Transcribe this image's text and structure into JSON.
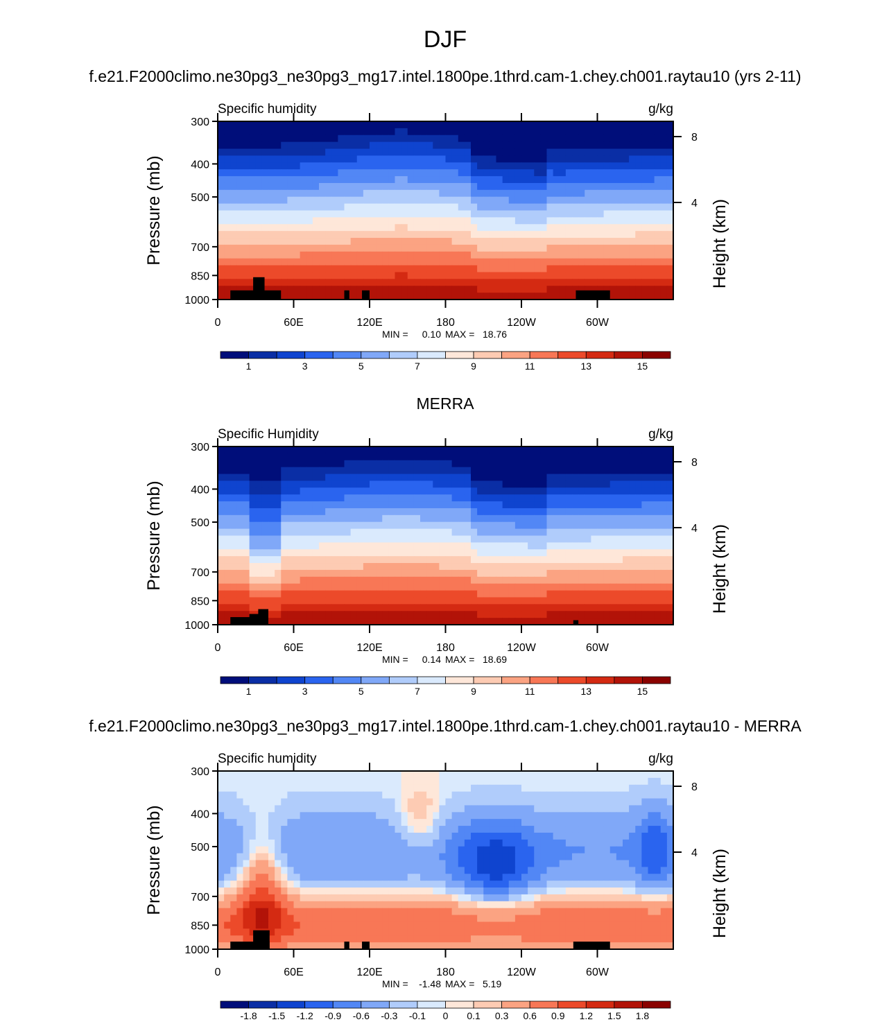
{
  "figure": {
    "title": "DJF"
  },
  "chart_data": [
    {
      "type": "heatmap",
      "panel_title": "f.e21.F2000climo.ne30pg3_ne30pg3_mg17.intel.1800pe.1thrd.cam-1.chey.ch001.raytau10 (yrs 2-11)",
      "title": "Specific humidity",
      "units": "g/kg",
      "xlabel": "",
      "ylabel": "Pressure (mb)",
      "ylabel_right": "Height (km)",
      "x_ticks": [
        "0",
        "60E",
        "120E",
        "180",
        "120W",
        "60W"
      ],
      "y_ticks": [
        "300",
        "400",
        "500",
        "700",
        "850",
        "1000"
      ],
      "y_ticks_right": [
        "8",
        "4"
      ],
      "min_label": "MIN =",
      "min_value": "0.10",
      "max_label": "MAX =",
      "max_value": "18.76",
      "colorbar_labels": [
        "1",
        "3",
        "5",
        "7",
        "9",
        "11",
        "13",
        "15"
      ],
      "colors": [
        "#000e7a",
        "#0a2ea5",
        "#0f44cf",
        "#2a64ef",
        "#5287f5",
        "#80a8f8",
        "#b0ccfb",
        "#daeafd",
        "#fee7d9",
        "#fdcbb3",
        "#fba382",
        "#f87756",
        "#ec4a2a",
        "#d42a12",
        "#b21308",
        "#8a0200"
      ],
      "colorbar_kind": "linear"
    },
    {
      "type": "heatmap",
      "panel_title": "MERRA",
      "title": "Specific Humidity",
      "units": "g/kg",
      "xlabel": "",
      "ylabel": "Pressure (mb)",
      "ylabel_right": "Height (km)",
      "x_ticks": [
        "0",
        "60E",
        "120E",
        "180",
        "120W",
        "60W"
      ],
      "y_ticks": [
        "300",
        "400",
        "500",
        "700",
        "850",
        "1000"
      ],
      "y_ticks_right": [
        "8",
        "4"
      ],
      "min_label": "MIN =",
      "min_value": "0.14",
      "max_label": "MAX =",
      "max_value": "18.69",
      "colorbar_labels": [
        "1",
        "3",
        "5",
        "7",
        "9",
        "11",
        "13",
        "15"
      ],
      "colors": [
        "#000e7a",
        "#0a2ea5",
        "#0f44cf",
        "#2a64ef",
        "#5287f5",
        "#80a8f8",
        "#b0ccfb",
        "#daeafd",
        "#fee7d9",
        "#fdcbb3",
        "#fba382",
        "#f87756",
        "#ec4a2a",
        "#d42a12",
        "#b21308",
        "#8a0200"
      ],
      "colorbar_kind": "linear"
    },
    {
      "type": "heatmap",
      "panel_title": "f.e21.F2000climo.ne30pg3_ne30pg3_mg17.intel.1800pe.1thrd.cam-1.chey.ch001.raytau10 - MERRA",
      "title": "Specific humidity",
      "units": "g/kg",
      "xlabel": "",
      "ylabel": "Pressure (mb)",
      "ylabel_right": "Height (km)",
      "x_ticks": [
        "0",
        "60E",
        "120E",
        "180",
        "120W",
        "60W"
      ],
      "y_ticks": [
        "300",
        "400",
        "500",
        "700",
        "850",
        "1000"
      ],
      "y_ticks_right": [
        "8",
        "4"
      ],
      "min_label": "MIN =",
      "min_value": "-1.48",
      "max_label": "MAX =",
      "max_value": "5.19",
      "colorbar_labels": [
        "-1.8",
        "-1.5",
        "-1.2",
        "-0.9",
        "-0.6",
        "-0.3",
        "-0.1",
        "0",
        "0.1",
        "0.3",
        "0.6",
        "0.9",
        "1.2",
        "1.5",
        "1.8"
      ],
      "colors": [
        "#000e7a",
        "#0a2ea5",
        "#0f44cf",
        "#2a64ef",
        "#5287f5",
        "#80a8f8",
        "#b0ccfb",
        "#daeafd",
        "#fee7d9",
        "#fdcbb3",
        "#fba382",
        "#f87756",
        "#ec4a2a",
        "#d42a12",
        "#b21308",
        "#8a0200"
      ],
      "colorbar_kind": "diff"
    }
  ]
}
